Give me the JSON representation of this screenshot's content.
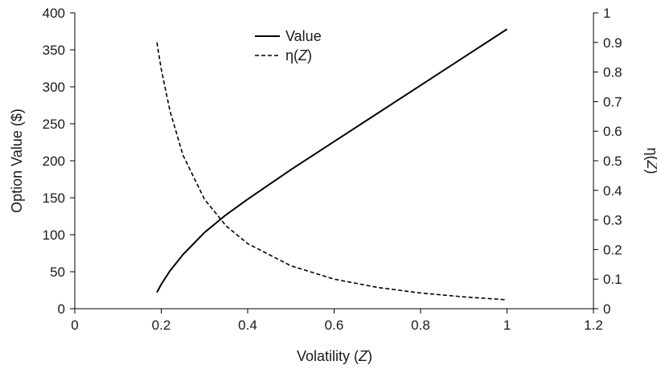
{
  "chart_data": {
    "type": "line",
    "xlabel_main": "Volatility (",
    "xlabel_var": "Z",
    "xlabel_end": ")",
    "ylabel": "Option Value ($)",
    "y2label_main": "η(",
    "y2label_var": "Z",
    "y2label_end": ")",
    "xlim": [
      0,
      1.2
    ],
    "ylim": [
      0,
      400
    ],
    "y2lim": [
      0,
      1
    ],
    "xticks": [
      "0",
      "0.2",
      "0.4",
      "0.6",
      "0.8",
      "1",
      "1.2"
    ],
    "yticks": [
      "0",
      "50",
      "100",
      "150",
      "200",
      "250",
      "300",
      "350",
      "400"
    ],
    "y2ticks": [
      "0",
      "0.1",
      "0.2",
      "0.3",
      "0.4",
      "0.5",
      "0.6",
      "0.7",
      "0.8",
      "0.9",
      "1"
    ],
    "legend_position": "top-center",
    "series": [
      {
        "name": "Value",
        "axis": "left",
        "style": "solid",
        "color": "#000000",
        "x": [
          0.19,
          0.2,
          0.22,
          0.25,
          0.3,
          0.35,
          0.4,
          0.5,
          0.6,
          0.7,
          0.8,
          0.9,
          1.0
        ],
        "y": [
          22,
          33,
          51,
          73,
          103,
          127,
          148,
          188,
          226,
          264,
          302,
          340,
          378
        ]
      },
      {
        "name_main": "η(",
        "name_var": "Z",
        "name_end": ")",
        "axis": "right",
        "style": "dashed",
        "color": "#000000",
        "x": [
          0.19,
          0.2,
          0.22,
          0.25,
          0.3,
          0.35,
          0.4,
          0.5,
          0.6,
          0.7,
          0.8,
          0.9,
          1.0
        ],
        "y": [
          0.9,
          0.81,
          0.67,
          0.52,
          0.37,
          0.28,
          0.22,
          0.145,
          0.1,
          0.072,
          0.053,
          0.04,
          0.03
        ]
      }
    ]
  }
}
